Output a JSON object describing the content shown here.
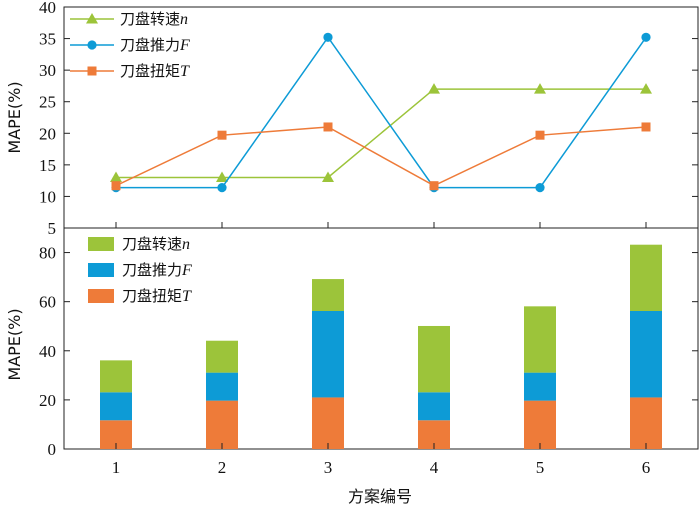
{
  "colors": {
    "speed": "#9cc43a",
    "thrust": "#0d9bd6",
    "torque": "#ee7b39"
  },
  "chart_data": [
    {
      "type": "line",
      "ylabel": "MAPE(%)",
      "ylim": [
        5,
        40
      ],
      "yticks": [
        5,
        10,
        15,
        20,
        25,
        30,
        35,
        40
      ],
      "x": [
        1,
        2,
        3,
        4,
        5,
        6
      ],
      "legend_position": "top-left",
      "series": [
        {
          "key": "speed",
          "name": "刀盘转速",
          "var": "n",
          "marker": "triangle",
          "values": [
            13,
            13,
            13,
            27,
            27,
            27
          ]
        },
        {
          "key": "thrust",
          "name": "刀盘推力",
          "var": "F",
          "marker": "circle",
          "values": [
            11.4,
            11.4,
            35.2,
            11.4,
            11.4,
            35.2
          ]
        },
        {
          "key": "torque",
          "name": "刀盘扭矩",
          "var": "T",
          "marker": "square",
          "values": [
            11.7,
            19.7,
            21,
            11.7,
            19.7,
            21
          ]
        }
      ]
    },
    {
      "type": "bar",
      "stacked": true,
      "ylabel": "MAPE(%)",
      "xlabel": "方案编号",
      "ylim": [
        0,
        90
      ],
      "yticks": [
        0,
        20,
        40,
        60,
        80
      ],
      "categories": [
        "1",
        "2",
        "3",
        "4",
        "5",
        "6"
      ],
      "legend_position": "top-left",
      "series": [
        {
          "key": "speed",
          "name": "刀盘转速",
          "var": "n",
          "values": [
            13,
            13,
            13,
            27,
            27,
            27
          ]
        },
        {
          "key": "thrust",
          "name": "刀盘推力",
          "var": "F",
          "values": [
            11.4,
            11.4,
            35.2,
            11.4,
            11.4,
            35.2
          ]
        },
        {
          "key": "torque",
          "name": "刀盘扭矩",
          "var": "T",
          "values": [
            11.7,
            19.7,
            21,
            11.7,
            19.7,
            21
          ]
        }
      ],
      "stack_order": [
        "torque",
        "thrust",
        "speed"
      ]
    }
  ]
}
